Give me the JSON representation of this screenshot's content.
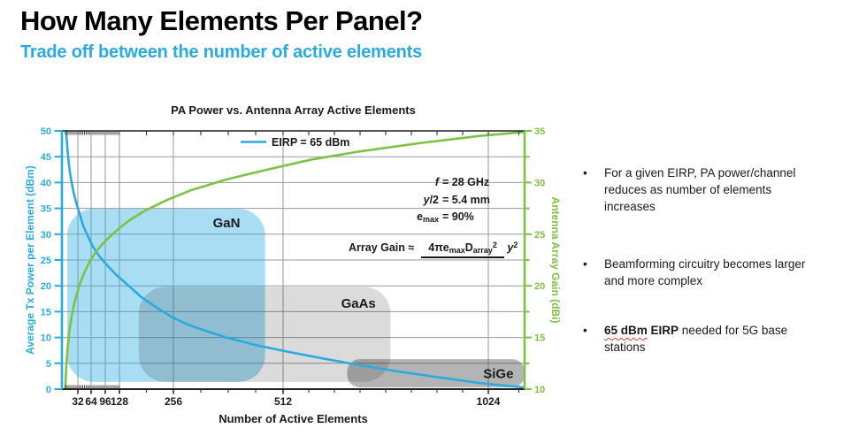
{
  "header": {
    "title": "How Many Elements Per Panel?",
    "subtitle": "Trade off between the number of active elements"
  },
  "bullets": {
    "marker": "•",
    "items": [
      {
        "text": "For a given EIRP, PA power/channel reduces as number of elements increases"
      },
      {
        "text": "Beamforming circuitry becomes larger and more complex"
      },
      {
        "bold_squiggle": "65 dBm",
        "bold_rest": " EIRP",
        "text": " needed for 5G base stations"
      }
    ]
  },
  "annotations": {
    "rows": [
      {
        "sym_italic": "f",
        "sym_plain": "",
        "sub": "",
        "rhs": "= 28 GHz"
      },
      {
        "sym_italic": "y",
        "sym_plain": "/2",
        "sub": "",
        "rhs": "= 5.4 mm"
      },
      {
        "sym_italic": "",
        "sym_plain": "e",
        "sub": "max",
        "rhs": "= 90%"
      }
    ],
    "formula": {
      "lhs": "Array Gain ≈",
      "num1": "4πe",
      "num1_sub": "max",
      "num2": "D",
      "num2_sub": "array",
      "num_sup": "2",
      "den": "y",
      "den_sup": "2"
    }
  },
  "chart_data": {
    "type": "line",
    "title": "PA Power vs. Antenna Array Active Elements",
    "legend": {
      "label": "EIRP = 65 dBm",
      "position": "top-center"
    },
    "grid": true,
    "x_axis": {
      "label": "Number of Active Elements",
      "range": [
        0,
        1100
      ],
      "major_ticks": [
        32,
        64,
        96,
        128,
        256,
        512,
        1024
      ]
    },
    "y_left_axis": {
      "label": "Average Tx Power per Element (dBm)",
      "range": [
        0,
        50
      ],
      "tick_step": 5,
      "color": "#29ABE2"
    },
    "y_right_axis": {
      "label": "Antenna Array Gain (dBi)",
      "range": [
        10,
        35
      ],
      "tick_step": 2.5,
      "label_step": 5,
      "color": "#7DC242"
    },
    "series": [
      {
        "name": "Average Tx power per element (EIRP = 65 dBm)",
        "axis": "left",
        "color": "#29ABE2",
        "points": [
          [
            5.6,
            50
          ],
          [
            6.5,
            48.7
          ],
          [
            8,
            47
          ],
          [
            10,
            45.1
          ],
          [
            12,
            43.4
          ],
          [
            15,
            41.5
          ],
          [
            18,
            40
          ],
          [
            22,
            38.2
          ],
          [
            28,
            36.2
          ],
          [
            35,
            34.3
          ],
          [
            45,
            31.6
          ],
          [
            55,
            29.8
          ],
          [
            68,
            27.6
          ],
          [
            82,
            25.8
          ],
          [
            100,
            24
          ],
          [
            120,
            22.2
          ],
          [
            150,
            20
          ],
          [
            180,
            17.8
          ],
          [
            220,
            15.6
          ],
          [
            256,
            13.8
          ],
          [
            290,
            12.5
          ],
          [
            320,
            11.6
          ],
          [
            380,
            10
          ],
          [
            450,
            8.5
          ],
          [
            520,
            7.3
          ],
          [
            600,
            6.1
          ],
          [
            700,
            4.7
          ],
          [
            800,
            3.4
          ],
          [
            900,
            2.3
          ],
          [
            1000,
            1.2
          ],
          [
            1100,
            0.3
          ]
        ]
      },
      {
        "name": "Antenna array gain",
        "axis": "right",
        "color": "#7DC242",
        "points": [
          [
            3.6,
            10
          ],
          [
            4.5,
            11
          ],
          [
            5.5,
            11.9
          ],
          [
            7,
            12.9
          ],
          [
            9,
            14
          ],
          [
            11,
            14.9
          ],
          [
            14,
            16
          ],
          [
            18,
            17
          ],
          [
            23,
            18.1
          ],
          [
            29,
            19.1
          ],
          [
            37,
            20.2
          ],
          [
            48,
            21.3
          ],
          [
            60,
            22.3
          ],
          [
            75,
            23.3
          ],
          [
            95,
            24.3
          ],
          [
            120,
            25.3
          ],
          [
            150,
            26.3
          ],
          [
            190,
            27.3
          ],
          [
            240,
            28.3
          ],
          [
            300,
            29.3
          ],
          [
            380,
            30.3
          ],
          [
            470,
            31.2
          ],
          [
            580,
            32.2
          ],
          [
            700,
            33
          ],
          [
            850,
            33.8
          ],
          [
            1000,
            34.5
          ],
          [
            1100,
            34.9
          ]
        ]
      }
    ],
    "regions": [
      {
        "label": "GaN",
        "n": [
          8,
          470
        ],
        "dbm": [
          1.4,
          34.9
        ],
        "color": "rgba(41,171,226,0.40)",
        "radius": 30,
        "label_n": 380,
        "label_dbm": 32.2
      },
      {
        "label": "GaAs",
        "n": [
          174,
          780
        ],
        "dbm": [
          1.4,
          19.8
        ],
        "color": "rgba(0,0,0,0.14)",
        "radius": 30,
        "label_n": 700,
        "label_dbm": 16.6
      },
      {
        "label": "SiGe",
        "n": [
          672,
          1100
        ],
        "dbm": [
          0.35,
          5.8
        ],
        "color": "rgba(51,51,51,0.37)",
        "radius": 14,
        "label_n": 1045,
        "label_dbm": 3.0
      }
    ]
  }
}
